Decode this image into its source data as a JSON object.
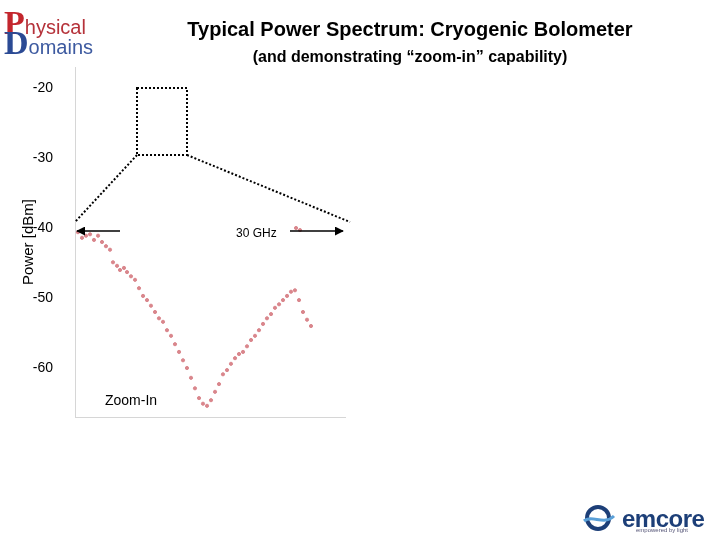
{
  "chart_data": {
    "type": "scatter",
    "title": "Typical Power Spectrum: Cryogenic Bolometer",
    "subtitle": "(and demonstrating “zoom-in” capability)",
    "y_label": "Power [dBm]",
    "annotations": [
      "30 GHz",
      "Zoom-In"
    ],
    "x": [
      0.33,
      0.78,
      1.22,
      1.67,
      2.11,
      2.56,
      3.0,
      3.44,
      3.89,
      4.22,
      4.67,
      5.0,
      5.44,
      5.78,
      6.22,
      6.67,
      7.11,
      7.56,
      8.0,
      8.44,
      8.89,
      9.33,
      9.78,
      10.22,
      10.67,
      11.11,
      11.56,
      12.0,
      12.44,
      12.89,
      13.33,
      13.78,
      14.22,
      14.67,
      15.11,
      15.56,
      16.0,
      16.44,
      16.89,
      17.33,
      17.78,
      18.22,
      18.67,
      19.11,
      19.56,
      20.0,
      20.44,
      20.89,
      21.33,
      21.78,
      22.22,
      22.67,
      23.11,
      23.56,
      24.0,
      24.44,
      24.89,
      25.33,
      25.78,
      26.22,
      24.56,
      25.0
    ],
    "values": [
      -40.6,
      -41.4,
      -41.1,
      -40.9,
      -41.7,
      -41.1,
      -42.0,
      -42.6,
      -43.1,
      -44.9,
      -45.4,
      -46.0,
      -45.7,
      -46.3,
      -46.9,
      -47.4,
      -48.6,
      -49.7,
      -50.3,
      -51.1,
      -52.0,
      -52.9,
      -53.4,
      -54.6,
      -55.4,
      -56.6,
      -57.7,
      -58.9,
      -60.0,
      -61.4,
      -62.9,
      -64.3,
      -65.1,
      -65.4,
      -64.6,
      -63.4,
      -62.3,
      -60.9,
      -60.3,
      -59.4,
      -58.6,
      -58.0,
      -57.7,
      -56.9,
      -56.0,
      -55.4,
      -54.6,
      -53.7,
      -52.9,
      -52.3,
      -51.4,
      -50.9,
      -50.3,
      -49.7,
      -49.1,
      -48.9,
      -50.3,
      -52.0,
      -53.1,
      -54.0,
      -40.0,
      -40.3
    ],
    "color": "#d9868c",
    "marker": "circle",
    "xlim": [
      0,
      30
    ],
    "ylim": [
      -67,
      -17
    ],
    "yticks": [
      -60,
      -50,
      -40,
      -30,
      -20
    ],
    "grid": false,
    "tick_labels": "y"
  },
  "logo_left": {
    "initials": [
      "P",
      "D"
    ],
    "rest": [
      "hysical",
      "omains"
    ]
  },
  "logo_right": {
    "text": "emcore",
    "tagline": "empowered by light"
  }
}
